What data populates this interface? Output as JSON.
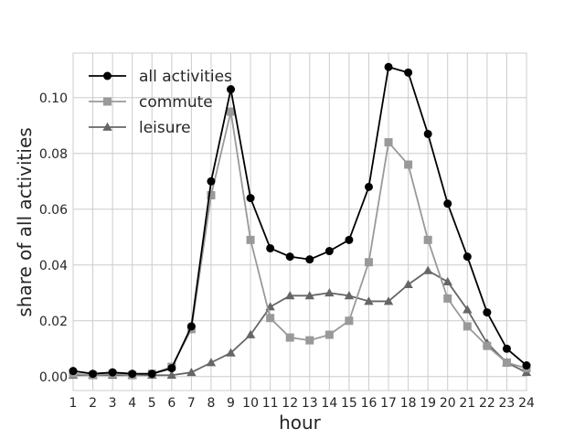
{
  "chart_data": {
    "type": "line",
    "title": "",
    "xlabel": "hour",
    "ylabel": "share of all activities",
    "xlim": [
      1,
      24
    ],
    "ylim": [
      -0.005,
      0.116
    ],
    "x": [
      1,
      2,
      3,
      4,
      5,
      6,
      7,
      8,
      9,
      10,
      11,
      12,
      13,
      14,
      15,
      16,
      17,
      18,
      19,
      20,
      21,
      22,
      23,
      24
    ],
    "xticks": [
      "1",
      "2",
      "3",
      "4",
      "5",
      "6",
      "7",
      "8",
      "9",
      "10",
      "11",
      "12",
      "13",
      "14",
      "15",
      "16",
      "17",
      "18",
      "19",
      "20",
      "21",
      "22",
      "23",
      "24"
    ],
    "yticks": [
      0.0,
      0.02,
      0.04,
      0.06,
      0.08,
      0.1
    ],
    "ytick_labels": [
      "0.00",
      "0.02",
      "0.04",
      "0.06",
      "0.08",
      "0.10"
    ],
    "grid": true,
    "legend_position": "top-left",
    "series": [
      {
        "name": "all activities",
        "color": "#000000",
        "marker": "circle",
        "values": [
          0.002,
          0.001,
          0.0015,
          0.001,
          0.001,
          0.003,
          0.018,
          0.07,
          0.103,
          0.064,
          0.046,
          0.043,
          0.042,
          0.045,
          0.049,
          0.068,
          0.111,
          0.109,
          0.087,
          0.062,
          0.043,
          0.023,
          0.01,
          0.004
        ]
      },
      {
        "name": "commute",
        "color": "#999999",
        "marker": "square",
        "values": [
          0.001,
          0.0005,
          0.001,
          0.0005,
          0.001,
          0.0035,
          0.017,
          0.065,
          0.095,
          0.049,
          0.021,
          0.014,
          0.013,
          0.015,
          0.02,
          0.041,
          0.084,
          0.076,
          0.049,
          0.028,
          0.018,
          0.011,
          0.005,
          0.003
        ]
      },
      {
        "name": "leisure",
        "color": "#666666",
        "marker": "triangle",
        "values": [
          0.0005,
          0.0005,
          0.0005,
          0.0005,
          0.0005,
          0.0005,
          0.0015,
          0.005,
          0.0085,
          0.015,
          0.025,
          0.029,
          0.029,
          0.03,
          0.029,
          0.027,
          0.027,
          0.033,
          0.038,
          0.034,
          0.024,
          0.012,
          0.005,
          0.0015
        ]
      }
    ]
  }
}
